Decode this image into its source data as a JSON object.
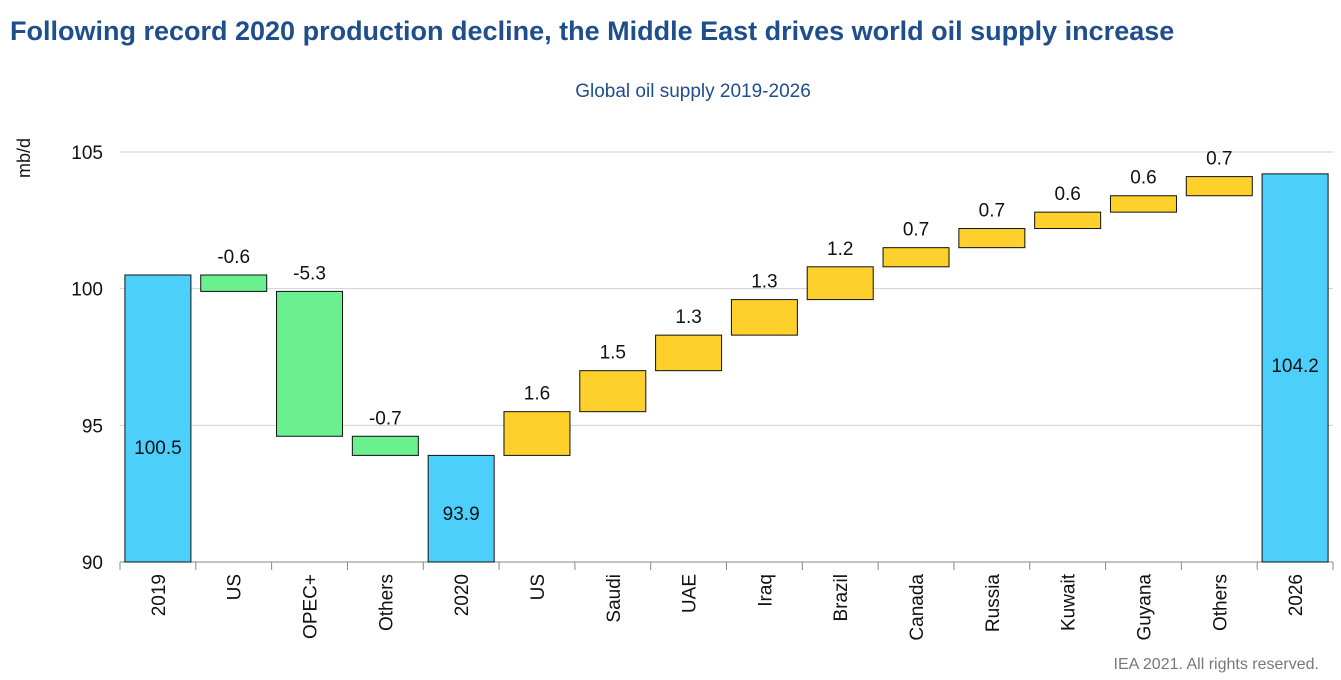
{
  "page": {
    "title": "Following record 2020 production decline, the Middle East drives world oil supply increase",
    "source": "IEA 2021. All rights reserved."
  },
  "colors": {
    "total": "#4dcffc",
    "decline": "#6af08f",
    "increase": "#fdd02c",
    "title": "#1f4e8c",
    "grid": "#d0d0d0",
    "text": "#111111",
    "note": "#777777"
  },
  "chart_data": {
    "type": "bar",
    "subtype": "waterfall",
    "title": "Global oil supply 2019-2026",
    "xlabel": "",
    "ylabel": "mb/d",
    "ylim": [
      90,
      105
    ],
    "yticks": [
      "90",
      "95",
      "100",
      "105"
    ],
    "grid": true,
    "categories": [
      "2019",
      "US",
      "OPEC+",
      "Others",
      "2020",
      "US",
      "Saudi",
      "UAE",
      "Iraq",
      "Brazil",
      "Canada",
      "Russia",
      "Kuwait",
      "Guyana",
      "Others",
      "2026"
    ],
    "bars": [
      {
        "category": "2019",
        "kind": "total",
        "start": 90,
        "end": 100.5,
        "label": "100.5"
      },
      {
        "category": "US",
        "kind": "decline",
        "start": 100.5,
        "end": 99.9,
        "label": "-0.6"
      },
      {
        "category": "OPEC+",
        "kind": "decline",
        "start": 99.9,
        "end": 94.6,
        "label": "-5.3"
      },
      {
        "category": "Others",
        "kind": "decline",
        "start": 94.6,
        "end": 93.9,
        "label": "-0.7"
      },
      {
        "category": "2020",
        "kind": "total",
        "start": 90,
        "end": 93.9,
        "label": "93.9"
      },
      {
        "category": "US",
        "kind": "increase",
        "start": 93.9,
        "end": 95.5,
        "label": "1.6"
      },
      {
        "category": "Saudi",
        "kind": "increase",
        "start": 95.5,
        "end": 97.0,
        "label": "1.5"
      },
      {
        "category": "UAE",
        "kind": "increase",
        "start": 97.0,
        "end": 98.3,
        "label": "1.3"
      },
      {
        "category": "Iraq",
        "kind": "increase",
        "start": 98.3,
        "end": 99.6,
        "label": "1.3"
      },
      {
        "category": "Brazil",
        "kind": "increase",
        "start": 99.6,
        "end": 100.8,
        "label": "1.2"
      },
      {
        "category": "Canada",
        "kind": "increase",
        "start": 100.8,
        "end": 101.5,
        "label": "0.7"
      },
      {
        "category": "Russia",
        "kind": "increase",
        "start": 101.5,
        "end": 102.2,
        "label": "0.7"
      },
      {
        "category": "Kuwait",
        "kind": "increase",
        "start": 102.2,
        "end": 102.8,
        "label": "0.6"
      },
      {
        "category": "Guyana",
        "kind": "increase",
        "start": 102.8,
        "end": 103.4,
        "label": "0.6"
      },
      {
        "category": "Others",
        "kind": "increase",
        "start": 103.4,
        "end": 104.1,
        "label": "0.7"
      },
      {
        "category": "2026",
        "kind": "total",
        "start": 90,
        "end": 104.2,
        "label": "104.2"
      }
    ]
  }
}
